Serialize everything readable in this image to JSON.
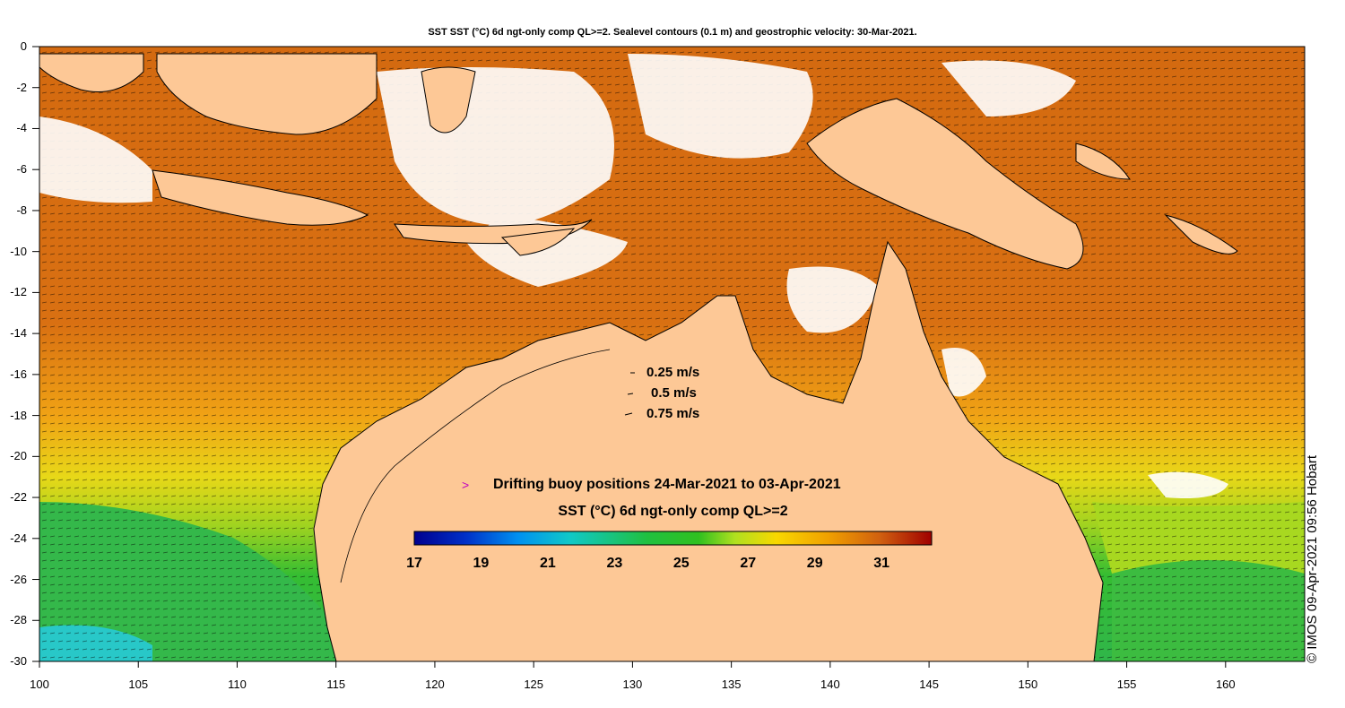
{
  "title": "SST SST (°C) 6d ngt-only comp QL>=2. Sealevel contours (0.1 m) and geostrophic velocity: 30-Mar-2021.",
  "y_ticks": [
    "0",
    "-2",
    "-4",
    "-6",
    "-8",
    "-10",
    "-12",
    "-14",
    "-16",
    "-18",
    "-20",
    "-22",
    "-24",
    "-26",
    "-28",
    "-30"
  ],
  "x_ticks": [
    "100",
    "105",
    "110",
    "115",
    "120",
    "125",
    "130",
    "135",
    "140",
    "145",
    "150",
    "155",
    "160"
  ],
  "velocity_legend": [
    {
      "label": "0.25 m/s"
    },
    {
      "label": "0.5 m/s"
    },
    {
      "label": "0.75 m/s"
    }
  ],
  "buoy_label": "Drifting buoy positions 24-Mar-2021 to 03-Apr-2021",
  "colorbar": {
    "title": "SST (°C) 6d ngt-only comp QL>=2",
    "ticks": [
      "17",
      "19",
      "21",
      "23",
      "25",
      "27",
      "29",
      "31"
    ],
    "min": 17,
    "max": 32.5
  },
  "credit": "© IMOS 09-Apr-2021 09:56 Hobart",
  "colors": {
    "land": "#fdc896",
    "sea_warm": "#d9690f",
    "sea_mid": "#f0a010",
    "sea_cool": "#2ec22e",
    "cloud": "#ffffff",
    "buoy": "#c000c0"
  }
}
